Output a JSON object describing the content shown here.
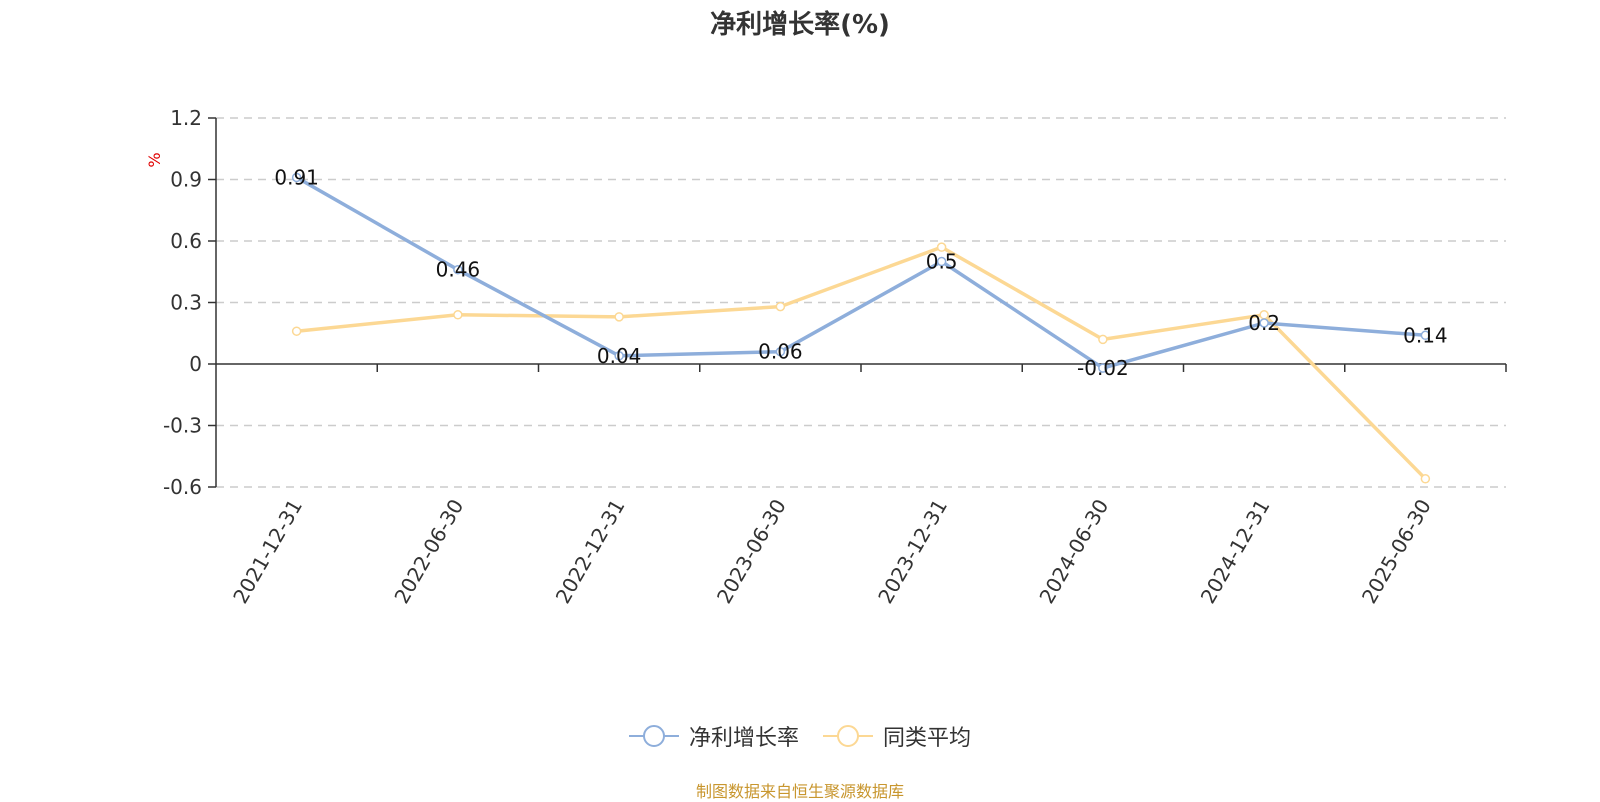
{
  "chart_data": {
    "type": "line",
    "title": "净利增长率(%)",
    "ylabel": "%",
    "xlabel": "",
    "categories": [
      "2021-12-31",
      "2022-06-30",
      "2022-12-31",
      "2023-06-30",
      "2023-12-31",
      "2024-06-30",
      "2024-12-31",
      "2025-06-30"
    ],
    "ylim": [
      -0.6,
      1.2
    ],
    "yticks": [
      -0.6,
      -0.3,
      0,
      0.3,
      0.6,
      0.9,
      1.2
    ],
    "ytick_labels": [
      "-0.6",
      "-0.3",
      "0",
      "0.3",
      "0.6",
      "0.9",
      "1.2"
    ],
    "grid": true,
    "legend_position": "bottom",
    "series": [
      {
        "name": "净利增长率",
        "color": "#8eaedb",
        "values": [
          0.91,
          0.46,
          0.04,
          0.06,
          0.5,
          -0.02,
          0.2,
          0.14
        ],
        "labels": [
          "0.91",
          "0.46",
          "0.04",
          "0.06",
          "0.5",
          "-0.02",
          "0.2",
          "0.14"
        ]
      },
      {
        "name": "同类平均",
        "color": "#fcd894",
        "values": [
          0.16,
          0.24,
          0.23,
          0.28,
          0.57,
          0.12,
          0.24,
          -0.56
        ]
      }
    ]
  },
  "source_text": "制图数据来自恒生聚源数据库"
}
